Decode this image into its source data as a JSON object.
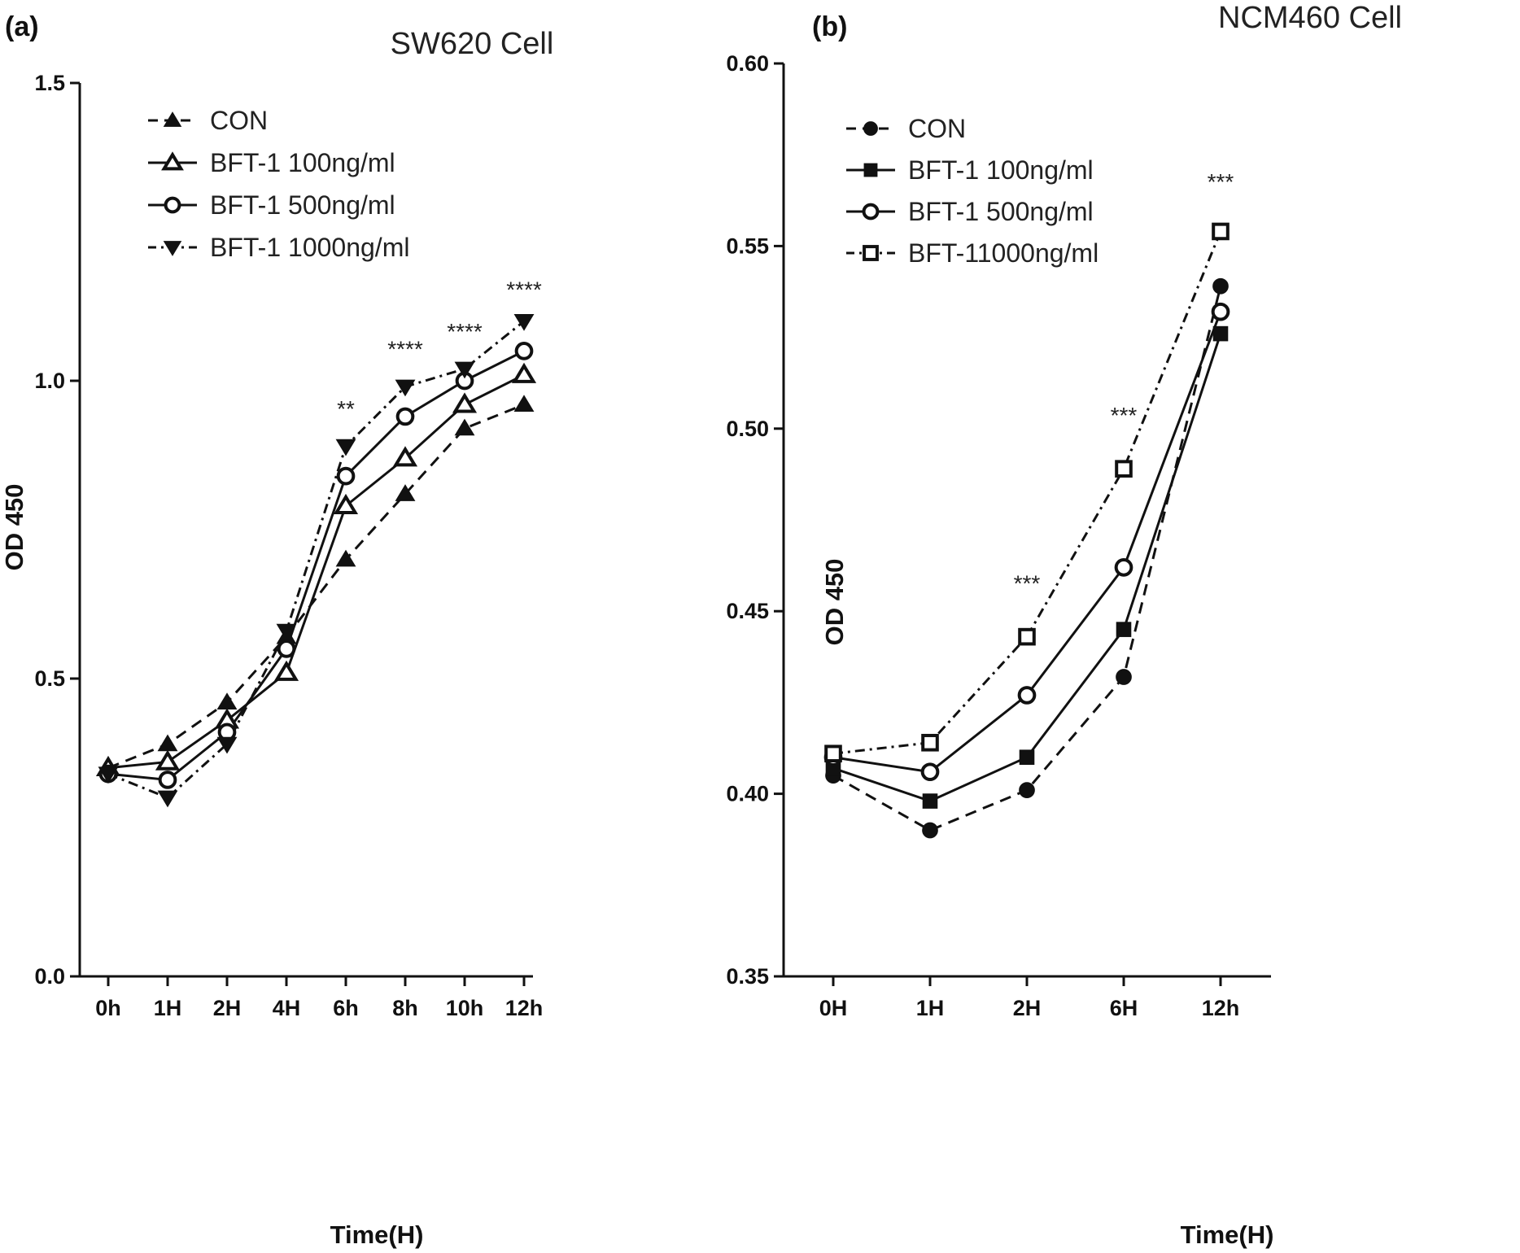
{
  "chart_data": [
    {
      "panel": "(a)",
      "type": "line",
      "title": "SW620   Cell",
      "xlabel": "Time(H)",
      "ylabel": "OD 450",
      "categories": [
        "0h",
        "1H",
        "2H",
        "4H",
        "6h",
        "8h",
        "10h",
        "12h"
      ],
      "ylim": [
        0.0,
        1.5
      ],
      "yticks": [
        "0.0",
        "0.5",
        "1.0",
        "1.5"
      ],
      "series": [
        {
          "name": "CON",
          "marker": "triangle-up-filled",
          "dash": "dashed",
          "values": [
            0.35,
            0.39,
            0.46,
            0.57,
            0.7,
            0.81,
            0.92,
            0.96
          ]
        },
        {
          "name": "BFT-1 100ng/ml",
          "marker": "triangle-up-open",
          "dash": "solid",
          "values": [
            0.35,
            0.36,
            0.43,
            0.51,
            0.79,
            0.87,
            0.96,
            1.01
          ]
        },
        {
          "name": "BFT-1 500ng/ml",
          "marker": "circle-open",
          "dash": "solid",
          "values": [
            0.34,
            0.33,
            0.41,
            0.55,
            0.84,
            0.94,
            1.0,
            1.05
          ]
        },
        {
          "name": "BFT-1 1000ng/ml",
          "marker": "triangle-down-filled",
          "dash": "dashdot",
          "values": [
            0.34,
            0.3,
            0.39,
            0.58,
            0.89,
            0.99,
            1.02,
            1.1
          ]
        }
      ],
      "annotations": [
        {
          "category": "6h",
          "text": "**",
          "y": 0.94
        },
        {
          "category": "8h",
          "text": "****",
          "y": 1.04
        },
        {
          "category": "10h",
          "text": "****",
          "y": 1.07
        },
        {
          "category": "12h",
          "text": "****",
          "y": 1.14
        }
      ]
    },
    {
      "panel": "(b)",
      "type": "line",
      "title": "NCM460 Cell",
      "xlabel": "Time(H)",
      "ylabel": "OD 450",
      "categories": [
        "0H",
        "1H",
        "2H",
        "6H",
        "12h"
      ],
      "ylim": [
        0.35,
        0.6
      ],
      "yticks": [
        "0.35",
        "0.40",
        "0.45",
        "0.50",
        "0.55",
        "0.60"
      ],
      "series": [
        {
          "name": "CON",
          "marker": "circle-filled",
          "dash": "dashed",
          "values": [
            0.405,
            0.39,
            0.401,
            0.432,
            0.539
          ]
        },
        {
          "name": "BFT-1 100ng/ml",
          "marker": "square-filled",
          "dash": "solid",
          "values": [
            0.407,
            0.398,
            0.41,
            0.445,
            0.526
          ]
        },
        {
          "name": "BFT-1 500ng/ml",
          "marker": "circle-open",
          "dash": "solid",
          "values": [
            0.41,
            0.406,
            0.427,
            0.462,
            0.532
          ]
        },
        {
          "name": "BFT-11000ng/ml",
          "marker": "square-open",
          "dash": "dashdot",
          "values": [
            0.411,
            0.414,
            0.443,
            0.489,
            0.554
          ]
        }
      ],
      "annotations": [
        {
          "category": "2H",
          "text": "***",
          "y": 0.4555
        },
        {
          "category": "6H",
          "text": "***",
          "y": 0.5015
        },
        {
          "category": "12h",
          "text": "***",
          "y": 0.5655
        }
      ]
    }
  ]
}
